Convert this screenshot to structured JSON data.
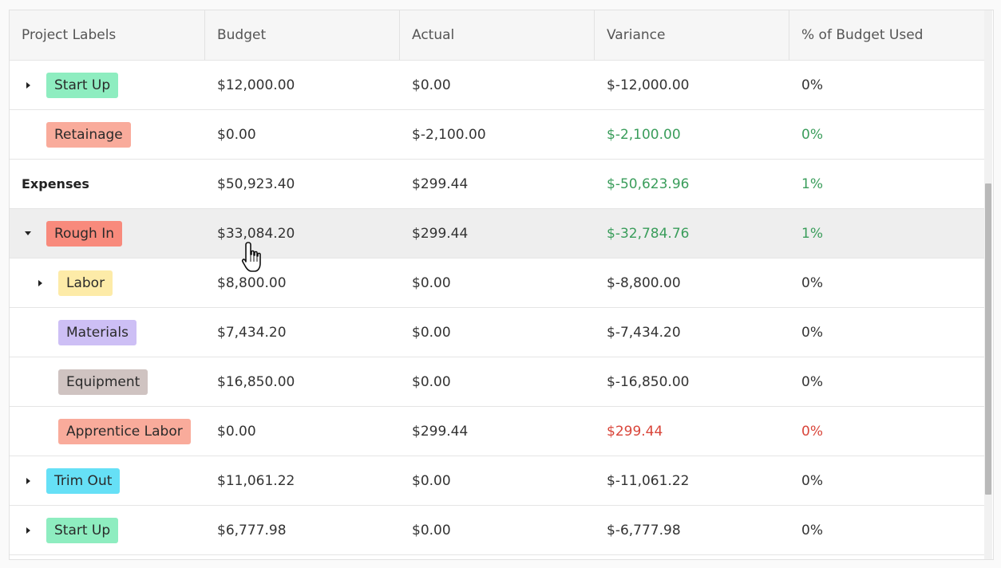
{
  "columns": [
    "Project Labels",
    "Budget",
    "Actual",
    "Variance",
    "% of Budget Used"
  ],
  "rows": [
    {
      "kind": "tag",
      "level": 0,
      "toggle": "collapsed",
      "label": "Start Up",
      "tag_color": "#8eedc0",
      "budget": "$12,000.00",
      "actual": "$0.00",
      "variance": "$-12,000.00",
      "pct": "0%",
      "status": "neutral"
    },
    {
      "kind": "tag",
      "level": 0,
      "toggle": "none",
      "label": "Retainage",
      "tag_color": "#f9ab9b",
      "budget": "$0.00",
      "actual": "$-2,100.00",
      "variance": "$-2,100.00",
      "pct": "0%",
      "status": "good"
    },
    {
      "kind": "section",
      "level": 0,
      "toggle": "none",
      "label": "Expenses",
      "budget": "$50,923.40",
      "actual": "$299.44",
      "variance": "$-50,623.96",
      "pct": "1%",
      "status": "good"
    },
    {
      "kind": "tag",
      "level": 0,
      "toggle": "expanded",
      "label": "Rough In",
      "tag_color": "#f88a7c",
      "budget": "$33,084.20",
      "actual": "$299.44",
      "variance": "$-32,784.76",
      "pct": "1%",
      "status": "good",
      "highlight": true
    },
    {
      "kind": "tag",
      "level": 1,
      "toggle": "collapsed",
      "label": "Labor",
      "tag_color": "#fdeba8",
      "budget": "$8,800.00",
      "actual": "$0.00",
      "variance": "$-8,800.00",
      "pct": "0%",
      "status": "neutral"
    },
    {
      "kind": "tag",
      "level": 1,
      "toggle": "none",
      "label": "Materials",
      "tag_color": "#cdbff5",
      "budget": "$7,434.20",
      "actual": "$0.00",
      "variance": "$-7,434.20",
      "pct": "0%",
      "status": "neutral"
    },
    {
      "kind": "tag",
      "level": 1,
      "toggle": "none",
      "label": "Equipment",
      "tag_color": "#cfc3c1",
      "budget": "$16,850.00",
      "actual": "$0.00",
      "variance": "$-16,850.00",
      "pct": "0%",
      "status": "neutral"
    },
    {
      "kind": "tag",
      "level": 1,
      "toggle": "none",
      "label": "Apprentice Labor",
      "tag_color": "#f9ab9b",
      "budget": "$0.00",
      "actual": "$299.44",
      "variance": "$299.44",
      "pct": "0%",
      "status": "bad"
    },
    {
      "kind": "tag",
      "level": 0,
      "toggle": "collapsed",
      "label": "Trim Out",
      "tag_color": "#66e0f6",
      "budget": "$11,061.22",
      "actual": "$0.00",
      "variance": "$-11,061.22",
      "pct": "0%",
      "status": "neutral"
    },
    {
      "kind": "tag",
      "level": 0,
      "toggle": "collapsed",
      "label": "Start Up",
      "tag_color": "#8eedc0",
      "budget": "$6,777.98",
      "actual": "$0.00",
      "variance": "$-6,777.98",
      "pct": "0%",
      "status": "neutral"
    }
  ],
  "colors": {
    "good": "#3a9d5b",
    "bad": "#d9453a",
    "highlight_row": "#eeeeee"
  },
  "cursor_icon": "hand-pointer-icon"
}
